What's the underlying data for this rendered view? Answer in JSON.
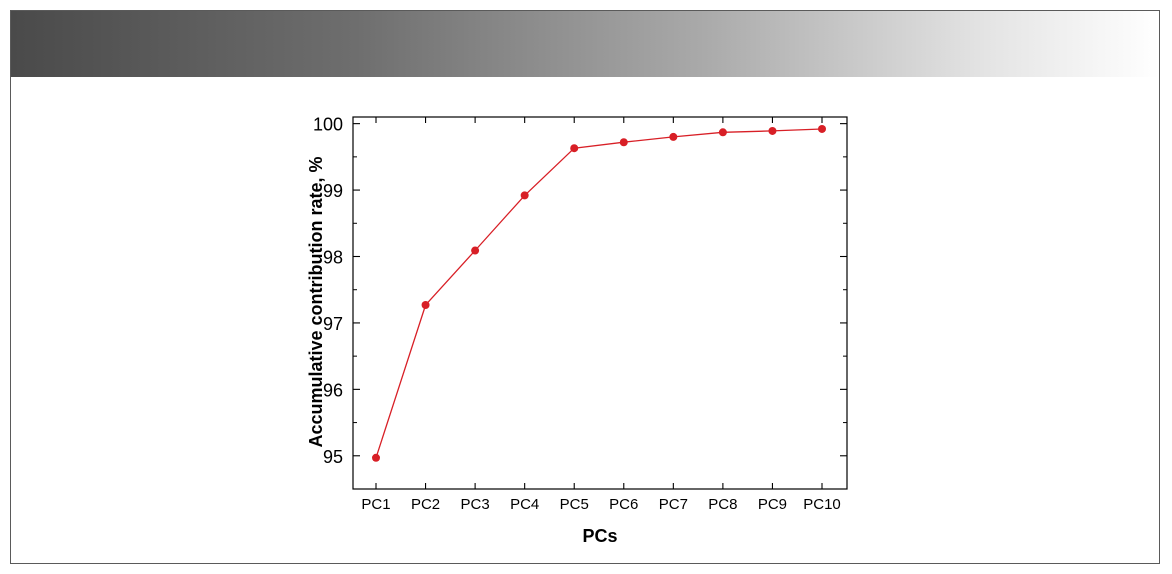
{
  "chart_data": {
    "type": "line",
    "title": "",
    "xlabel": "PCs",
    "ylabel": "Accumulative contribution rate, %",
    "categories": [
      "PC1",
      "PC2",
      "PC3",
      "PC4",
      "PC5",
      "PC6",
      "PC7",
      "PC8",
      "PC9",
      "PC10"
    ],
    "series": [
      {
        "values": [
          94.97,
          97.27,
          98.09,
          98.92,
          99.63,
          99.72,
          99.8,
          99.87,
          99.89,
          99.92
        ]
      }
    ],
    "ylim": [
      94.5,
      100.1
    ],
    "yticks": [
      "95",
      "96",
      "97",
      "98",
      "99",
      "100"
    ],
    "grid": false,
    "legend": "none",
    "line_color": "#d81f26",
    "marker_color": "#d81f26"
  }
}
